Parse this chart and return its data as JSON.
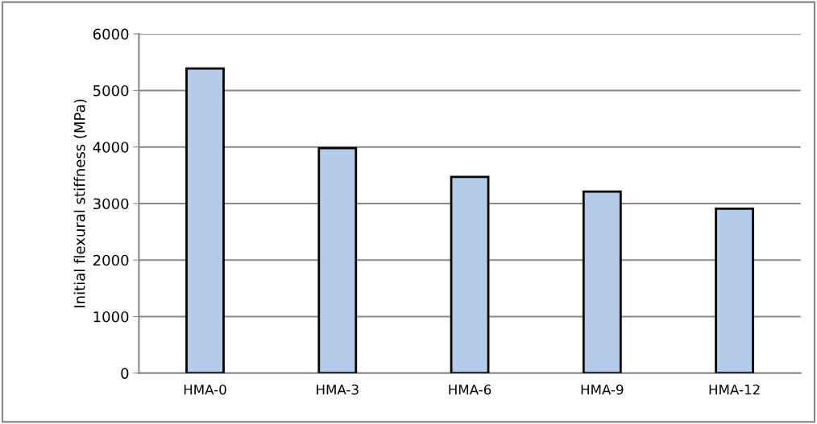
{
  "chart_data": {
    "type": "bar",
    "ylabel": "Initial flexural stiffness (MPa)",
    "categories": [
      "HMA-0",
      "HMA-3",
      "HMA-6",
      "HMA-9",
      "HMA-12"
    ],
    "values": [
      5390,
      3980,
      3470,
      3210,
      2910
    ],
    "color": "#b4cbea",
    "ylim": [
      0,
      6000
    ],
    "yticks": [
      0,
      1000,
      2000,
      3000,
      4000,
      5000,
      6000
    ],
    "grid": "y"
  }
}
